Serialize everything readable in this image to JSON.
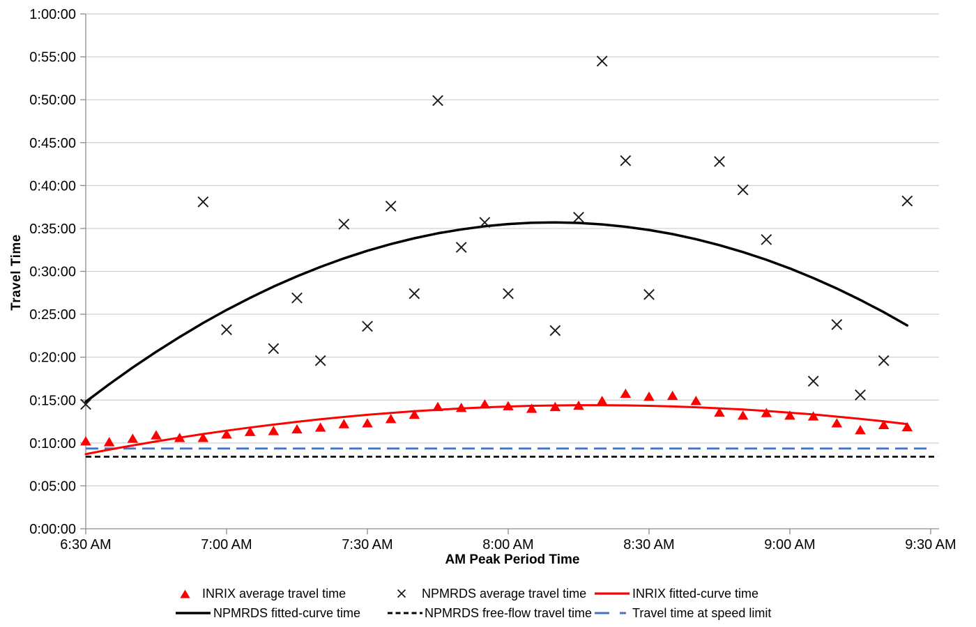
{
  "colors": {
    "inrix_red": "#fe0000",
    "npmrds_black": "#000000",
    "marker_x_black": "#1a1a1a",
    "speed_limit_blue": "#4472c4",
    "gridline": "#cdcdcd",
    "axis": "#8c8c8c",
    "text": "#000000",
    "background": "#ffffff"
  },
  "chart_data": {
    "type": "scatter",
    "title": "",
    "xlabel": "AM Peak Period Time",
    "ylabel": "Travel Time",
    "grid": "horizontal-only",
    "x_unit": "minutes after 6:30 AM",
    "y_unit": "travel time in minutes (h:mm:ss on axis)",
    "x_axis": {
      "tick_minutes": [
        0,
        30,
        60,
        90,
        120,
        150,
        180
      ],
      "tick_labels": [
        "6:30 AM",
        "7:00 AM",
        "7:30 AM",
        "8:00 AM",
        "8:30 AM",
        "9:00 AM",
        "9:30 AM"
      ],
      "range_minutes": [
        0,
        182
      ]
    },
    "y_axis": {
      "tick_minutes": [
        0,
        5,
        10,
        15,
        20,
        25,
        30,
        35,
        40,
        45,
        50,
        55,
        60
      ],
      "tick_labels": [
        "0:00:00",
        "0:05:00",
        "0:10:00",
        "0:15:00",
        "0:20:00",
        "0:25:00",
        "0:30:00",
        "0:35:00",
        "0:40:00",
        "0:45:00",
        "0:50:00",
        "0:55:00",
        "1:00:00"
      ],
      "range_minutes": [
        0,
        60
      ]
    },
    "series": [
      {
        "id": "inrix_average",
        "name": "INRIX average travel time",
        "type": "scatter",
        "marker": "triangle",
        "color": "#fe0000",
        "points": [
          [
            0,
            10.2
          ],
          [
            5,
            10.1
          ],
          [
            10,
            10.5
          ],
          [
            15,
            10.9
          ],
          [
            20,
            10.6
          ],
          [
            25,
            10.6
          ],
          [
            30,
            11.0
          ],
          [
            35,
            11.3
          ],
          [
            40,
            11.4
          ],
          [
            45,
            11.6
          ],
          [
            50,
            11.8
          ],
          [
            55,
            12.2
          ],
          [
            60,
            12.3
          ],
          [
            65,
            12.8
          ],
          [
            70,
            13.3
          ],
          [
            75,
            14.2
          ],
          [
            80,
            14.1
          ],
          [
            85,
            14.5
          ],
          [
            90,
            14.3
          ],
          [
            95,
            14.0
          ],
          [
            100,
            14.2
          ],
          [
            105,
            14.35
          ],
          [
            110,
            14.9
          ],
          [
            115,
            15.75
          ],
          [
            120,
            15.4
          ],
          [
            125,
            15.5
          ],
          [
            130,
            14.9
          ],
          [
            135,
            13.55
          ],
          [
            140,
            13.2
          ],
          [
            145,
            13.5
          ],
          [
            150,
            13.2
          ],
          [
            155,
            13.1
          ],
          [
            160,
            12.3
          ],
          [
            165,
            11.5
          ],
          [
            170,
            12.1
          ],
          [
            175,
            11.85
          ]
        ]
      },
      {
        "id": "npmrds_average",
        "name": "NPMRDS average travel time",
        "type": "scatter",
        "marker": "x",
        "color": "#1a1a1a",
        "points": [
          [
            0,
            14.5
          ],
          [
            25,
            38.1
          ],
          [
            30,
            23.2
          ],
          [
            40,
            21.0
          ],
          [
            45,
            26.9
          ],
          [
            50,
            19.6
          ],
          [
            55,
            35.5
          ],
          [
            60,
            23.6
          ],
          [
            65,
            37.6
          ],
          [
            70,
            27.4
          ],
          [
            75,
            49.9
          ],
          [
            80,
            32.8
          ],
          [
            85,
            35.7
          ],
          [
            90,
            27.4
          ],
          [
            100,
            23.1
          ],
          [
            105,
            36.3
          ],
          [
            110,
            54.5
          ],
          [
            115,
            42.9
          ],
          [
            120,
            27.3
          ],
          [
            135,
            42.8
          ],
          [
            140,
            39.5
          ],
          [
            145,
            33.7
          ],
          [
            155,
            17.2
          ],
          [
            160,
            23.8
          ],
          [
            165,
            15.6
          ],
          [
            170,
            19.6
          ],
          [
            175,
            38.2
          ]
        ]
      },
      {
        "id": "inrix_fitted",
        "name": "INRIX fitted-curve time",
        "type": "line",
        "color": "#fe0000",
        "width": 3,
        "points": [
          [
            0,
            8.7
          ],
          [
            5,
            9.22
          ],
          [
            10,
            9.71
          ],
          [
            15,
            10.18
          ],
          [
            20,
            10.62
          ],
          [
            25,
            11.04
          ],
          [
            30,
            11.43
          ],
          [
            35,
            11.8
          ],
          [
            40,
            12.14
          ],
          [
            45,
            12.46
          ],
          [
            50,
            12.76
          ],
          [
            55,
            13.03
          ],
          [
            60,
            13.28
          ],
          [
            65,
            13.5
          ],
          [
            70,
            13.7
          ],
          [
            75,
            13.87
          ],
          [
            80,
            14.02
          ],
          [
            85,
            14.15
          ],
          [
            90,
            14.25
          ],
          [
            95,
            14.33
          ],
          [
            100,
            14.37
          ],
          [
            105,
            14.4
          ],
          [
            110,
            14.4
          ],
          [
            115,
            14.38
          ],
          [
            120,
            14.33
          ],
          [
            125,
            14.26
          ],
          [
            130,
            14.16
          ],
          [
            135,
            14.04
          ],
          [
            140,
            13.9
          ],
          [
            145,
            13.73
          ],
          [
            150,
            13.53
          ],
          [
            155,
            13.32
          ],
          [
            160,
            13.07
          ],
          [
            165,
            12.81
          ],
          [
            170,
            12.52
          ],
          [
            175,
            12.2
          ]
        ]
      },
      {
        "id": "npmrds_fitted",
        "name": "NPMRDS fitted-curve time",
        "type": "line",
        "color": "#000000",
        "width": 3.5,
        "points": [
          [
            0,
            14.8
          ],
          [
            5,
            16.85
          ],
          [
            10,
            18.79
          ],
          [
            15,
            20.62
          ],
          [
            20,
            22.35
          ],
          [
            25,
            23.98
          ],
          [
            30,
            25.5
          ],
          [
            35,
            26.91
          ],
          [
            40,
            28.22
          ],
          [
            45,
            29.42
          ],
          [
            50,
            30.52
          ],
          [
            55,
            31.51
          ],
          [
            60,
            32.4
          ],
          [
            65,
            33.18
          ],
          [
            70,
            33.86
          ],
          [
            75,
            34.43
          ],
          [
            80,
            34.89
          ],
          [
            85,
            35.25
          ],
          [
            90,
            35.51
          ],
          [
            95,
            35.66
          ],
          [
            100,
            35.7
          ],
          [
            105,
            35.64
          ],
          [
            110,
            35.47
          ],
          [
            115,
            35.2
          ],
          [
            120,
            34.82
          ],
          [
            125,
            34.34
          ],
          [
            130,
            33.75
          ],
          [
            135,
            33.05
          ],
          [
            140,
            32.25
          ],
          [
            145,
            31.35
          ],
          [
            150,
            30.34
          ],
          [
            155,
            29.22
          ],
          [
            160,
            28.0
          ],
          [
            165,
            26.67
          ],
          [
            170,
            25.24
          ],
          [
            175,
            23.7
          ]
        ]
      },
      {
        "id": "npmrds_freeflow",
        "name": "NPMRDS free-flow travel time",
        "type": "hline",
        "color": "#000000",
        "dash": "8 5",
        "width": 2.6,
        "value_minutes": 8.4,
        "value_label": "0:08:24",
        "x_span": [
          0,
          181.5
        ]
      },
      {
        "id": "speed_limit",
        "name": "Travel time at speed limit",
        "type": "hline",
        "color": "#4472c4",
        "dash": "18 9",
        "width": 2.9,
        "value_minutes": 9.35,
        "value_label": "0:09:21",
        "x_span": [
          0,
          180.2
        ]
      }
    ]
  },
  "legend": {
    "rows": [
      [
        {
          "series": "inrix_average",
          "label": "INRIX average travel time",
          "marker": "triangle",
          "color": "#fe0000"
        },
        {
          "series": "npmrds_average",
          "label": "NPMRDS average travel time",
          "marker": "x",
          "color": "#1a1a1a"
        },
        {
          "series": "inrix_fitted",
          "label": "INRIX fitted-curve time",
          "marker": "solid-line",
          "color": "#fe0000"
        }
      ],
      [
        {
          "series": "npmrds_fitted",
          "label": "NPMRDS fitted-curve time",
          "marker": "solid-line",
          "color": "#000000"
        },
        {
          "series": "npmrds_freeflow",
          "label": "NPMRDS free-flow travel time",
          "marker": "short-dash-line",
          "color": "#000000"
        },
        {
          "series": "speed_limit",
          "label": "Travel time at speed limit",
          "marker": "long-short-dash-line",
          "color": "#4472c4"
        }
      ]
    ]
  }
}
